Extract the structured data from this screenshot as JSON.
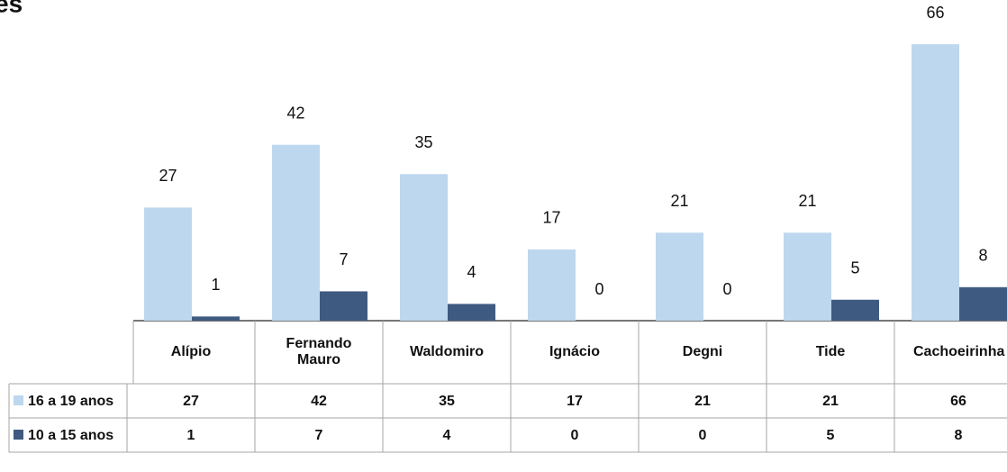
{
  "chart_data": {
    "type": "bar",
    "title": "es",
    "categories": [
      "Alípio",
      "Fernando Mauro",
      "Waldomiro",
      "Ignácio",
      "Degni",
      "Tide",
      "Cachoeirinha"
    ],
    "series": [
      {
        "name": "16 a 19 anos",
        "color": "#bdd7ee",
        "values": [
          27,
          42,
          35,
          17,
          21,
          21,
          66
        ]
      },
      {
        "name": "10 a 15 anos",
        "color": "#3f5a80",
        "values": [
          1,
          7,
          4,
          0,
          0,
          5,
          8
        ]
      }
    ]
  }
}
